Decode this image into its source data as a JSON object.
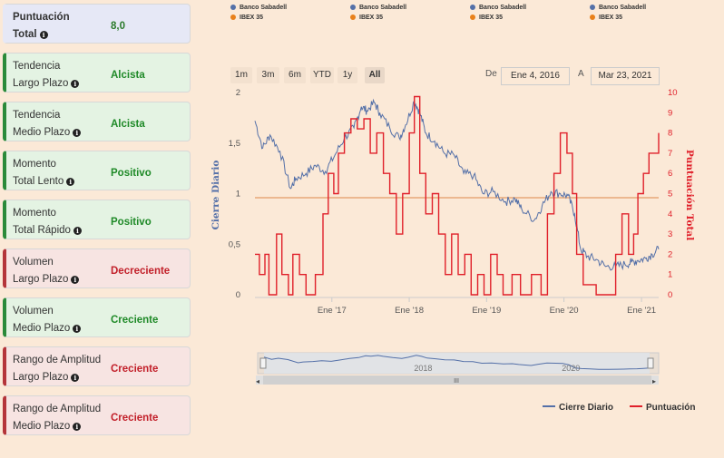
{
  "cards": [
    {
      "line1": "Puntuación",
      "line2": "Total",
      "value": "8,0",
      "style": "blue"
    },
    {
      "line1": "Tendencia",
      "line2": "Largo Plazo",
      "value": "Alcista",
      "style": "green"
    },
    {
      "line1": "Tendencia",
      "line2": "Medio Plazo",
      "value": "Alcista",
      "style": "green"
    },
    {
      "line1": "Momento",
      "line2": "Total Lento",
      "value": "Positivo",
      "style": "green"
    },
    {
      "line1": "Momento",
      "line2": "Total Rápido",
      "value": "Positivo",
      "style": "green"
    },
    {
      "line1": "Volumen",
      "line2": "Largo Plazo",
      "value": "Decreciente",
      "style": "red"
    },
    {
      "line1": "Volumen",
      "line2": "Medio Plazo",
      "value": "Creciente",
      "style": "green"
    },
    {
      "line1": "Rango de Amplitud",
      "line2": "Largo Plazo",
      "value": "Creciente",
      "style": "red"
    },
    {
      "line1": "Rango de Amplitud",
      "line2": "Medio Plazo",
      "value": "Creciente",
      "style": "red"
    }
  ],
  "top_legend": [
    {
      "line1": "Banco Sabadell",
      "line2": "IBEX 35"
    },
    {
      "line1": "Banco Sabadell",
      "line2": "IBEX 35"
    },
    {
      "line1": "Banco Sabadell",
      "line2": "IBEX 35"
    },
    {
      "line1": "Banco Sabadell",
      "line2": "IBEX 35"
    }
  ],
  "range_selector": {
    "buttons": [
      "1m",
      "3m",
      "6m",
      "YTD",
      "1y",
      "All"
    ],
    "active": "All",
    "from_label": "De",
    "from": "Ene 4, 2016",
    "to_label": "A",
    "to": "Mar 23, 2021"
  },
  "navigator": {
    "labels": [
      "2018",
      "2020"
    ],
    "scroll_grip": "III"
  },
  "colors": {
    "price": "#5470a8",
    "score": "#e0202a",
    "threshold": "#e8a878",
    "navigator_bg": "#dfe3ea"
  },
  "chart_data": {
    "type": "line",
    "xlabel": "",
    "x_ticks": [
      "Ene '17",
      "Ene '18",
      "Ene '19",
      "Ene '20",
      "Ene '21"
    ],
    "y_left": {
      "label": "Cierre Diario",
      "ticks": [
        "0",
        "0,5",
        "1",
        "1,5",
        "2"
      ],
      "range": [
        0,
        2
      ]
    },
    "y_right": {
      "label": "Puntuación Total",
      "ticks": [
        "0",
        "1",
        "2",
        "3",
        "4",
        "5",
        "6",
        "7",
        "8",
        "9",
        "10"
      ],
      "range": [
        0,
        10
      ]
    },
    "x_range": [
      "2016-01-04",
      "2021-03-23"
    ],
    "threshold_score": 4.8,
    "series": [
      {
        "name": "Cierre Diario",
        "axis": "left",
        "points": [
          [
            "2016-01-04",
            1.72
          ],
          [
            "2016-02-10",
            1.45
          ],
          [
            "2016-03-15",
            1.58
          ],
          [
            "2016-05-01",
            1.42
          ],
          [
            "2016-06-20",
            1.05
          ],
          [
            "2016-07-15",
            1.15
          ],
          [
            "2016-09-01",
            1.2
          ],
          [
            "2016-10-15",
            1.28
          ],
          [
            "2016-12-01",
            1.22
          ],
          [
            "2017-01-15",
            1.38
          ],
          [
            "2017-03-01",
            1.55
          ],
          [
            "2017-04-15",
            1.65
          ],
          [
            "2017-05-20",
            1.86
          ],
          [
            "2017-06-15",
            1.82
          ],
          [
            "2017-07-20",
            1.9
          ],
          [
            "2017-08-15",
            1.8
          ],
          [
            "2017-10-01",
            1.65
          ],
          [
            "2017-11-15",
            1.55
          ],
          [
            "2017-12-15",
            1.68
          ],
          [
            "2018-01-25",
            1.92
          ],
          [
            "2018-02-20",
            1.8
          ],
          [
            "2018-03-20",
            1.6
          ],
          [
            "2018-05-01",
            1.52
          ],
          [
            "2018-06-15",
            1.4
          ],
          [
            "2018-08-01",
            1.38
          ],
          [
            "2018-09-15",
            1.2
          ],
          [
            "2018-11-01",
            1.18
          ],
          [
            "2018-12-15",
            1.0
          ],
          [
            "2019-02-01",
            1.02
          ],
          [
            "2019-04-01",
            0.92
          ],
          [
            "2019-05-15",
            0.95
          ],
          [
            "2019-06-15",
            0.85
          ],
          [
            "2019-08-15",
            0.74
          ],
          [
            "2019-09-20",
            0.88
          ],
          [
            "2019-11-01",
            1.02
          ],
          [
            "2019-12-15",
            1.0
          ],
          [
            "2020-01-20",
            0.98
          ],
          [
            "2020-02-20",
            0.8
          ],
          [
            "2020-03-20",
            0.45
          ],
          [
            "2020-04-20",
            0.38
          ],
          [
            "2020-06-01",
            0.35
          ],
          [
            "2020-07-15",
            0.28
          ],
          [
            "2020-09-01",
            0.28
          ],
          [
            "2020-10-15",
            0.3
          ],
          [
            "2020-11-15",
            0.32
          ],
          [
            "2020-12-15",
            0.34
          ],
          [
            "2021-01-20",
            0.36
          ],
          [
            "2021-02-20",
            0.4
          ],
          [
            "2021-03-23",
            0.45
          ]
        ]
      },
      {
        "name": "Puntuación",
        "axis": "right",
        "points": [
          [
            "2016-01-04",
            2
          ],
          [
            "2016-01-25",
            1
          ],
          [
            "2016-02-20",
            2
          ],
          [
            "2016-03-10",
            0
          ],
          [
            "2016-04-15",
            3
          ],
          [
            "2016-05-10",
            1
          ],
          [
            "2016-06-10",
            0
          ],
          [
            "2016-07-01",
            2
          ],
          [
            "2016-08-01",
            1
          ],
          [
            "2016-09-01",
            0
          ],
          [
            "2016-10-15",
            1
          ],
          [
            "2016-11-20",
            4
          ],
          [
            "2016-12-15",
            6
          ],
          [
            "2017-01-10",
            5
          ],
          [
            "2017-02-01",
            7
          ],
          [
            "2017-03-01",
            8
          ],
          [
            "2017-04-01",
            8.7
          ],
          [
            "2017-05-01",
            8.2
          ],
          [
            "2017-06-01",
            8.7
          ],
          [
            "2017-07-01",
            7
          ],
          [
            "2017-08-01",
            8
          ],
          [
            "2017-09-01",
            6
          ],
          [
            "2017-10-01",
            5
          ],
          [
            "2017-11-01",
            3
          ],
          [
            "2017-12-01",
            5
          ],
          [
            "2018-01-01",
            8
          ],
          [
            "2018-01-25",
            9.8
          ],
          [
            "2018-02-20",
            6
          ],
          [
            "2018-03-20",
            4
          ],
          [
            "2018-04-20",
            5
          ],
          [
            "2018-05-20",
            3
          ],
          [
            "2018-06-20",
            1
          ],
          [
            "2018-07-20",
            3
          ],
          [
            "2018-08-20",
            1
          ],
          [
            "2018-09-20",
            2
          ],
          [
            "2018-10-20",
            0
          ],
          [
            "2018-11-20",
            1
          ],
          [
            "2018-12-20",
            0
          ],
          [
            "2019-01-20",
            2
          ],
          [
            "2019-02-20",
            1
          ],
          [
            "2019-03-20",
            0
          ],
          [
            "2019-05-01",
            1
          ],
          [
            "2019-06-10",
            0
          ],
          [
            "2019-08-01",
            1
          ],
          [
            "2019-09-15",
            0
          ],
          [
            "2019-10-15",
            4
          ],
          [
            "2019-11-15",
            6
          ],
          [
            "2019-12-15",
            8
          ],
          [
            "2020-01-15",
            7
          ],
          [
            "2020-02-10",
            5
          ],
          [
            "2020-03-01",
            2
          ],
          [
            "2020-04-01",
            0.5
          ],
          [
            "2020-06-01",
            0
          ],
          [
            "2020-09-01",
            2
          ],
          [
            "2020-10-01",
            4
          ],
          [
            "2020-11-01",
            2
          ],
          [
            "2020-11-25",
            3
          ],
          [
            "2020-12-15",
            5
          ],
          [
            "2021-01-10",
            6
          ],
          [
            "2021-02-05",
            7
          ],
          [
            "2021-03-01",
            7
          ],
          [
            "2021-03-23",
            8
          ]
        ]
      }
    ],
    "legend": [
      "Cierre Diario",
      "Puntuación"
    ]
  }
}
